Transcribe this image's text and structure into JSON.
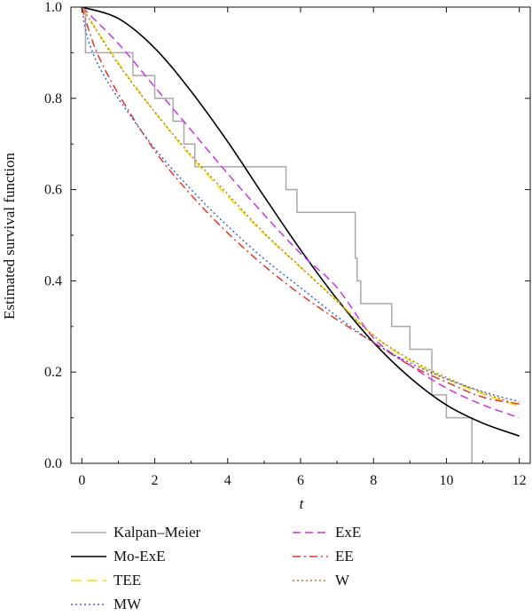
{
  "chart_data": {
    "type": "line",
    "title": "",
    "xlabel": "t",
    "ylabel": "Estimated survival function",
    "xlim": [
      -0.3,
      12.3
    ],
    "ylim": [
      0,
      1
    ],
    "xticks": [
      0,
      2,
      4,
      6,
      8,
      10,
      12
    ],
    "xtick_labels": [
      "0",
      "2",
      "4",
      "6",
      "8",
      "10",
      "12"
    ],
    "yticks": [
      0,
      0.2,
      0.4,
      0.6,
      0.8,
      1.0
    ],
    "ytick_labels": [
      "0.0",
      "0.2",
      "0.4",
      "0.6",
      "0.8",
      "1.0"
    ],
    "grid": false,
    "legend_placement": "bottom",
    "series": [
      {
        "name": "Kalpan–Meier",
        "color": "#a8a8a8",
        "dash": "solid",
        "step": true,
        "x": [
          0,
          0.1,
          1.4,
          1.4,
          2.0,
          2.5,
          2.8,
          3.1,
          5.0,
          5.6,
          5.9,
          7.5,
          7.55,
          7.65,
          8.5,
          9.0,
          9.6,
          10.0,
          10.7
        ],
        "y": [
          1.0,
          0.9,
          0.9,
          0.85,
          0.8,
          0.75,
          0.7,
          0.65,
          0.65,
          0.6,
          0.55,
          0.45,
          0.4,
          0.35,
          0.3,
          0.25,
          0.15,
          0.1,
          0.05
        ],
        "end": [
          10.7,
          0.0
        ]
      },
      {
        "name": "Mo-ExE",
        "color": "#000000",
        "dash": "solid",
        "x": [
          0,
          1,
          2,
          3,
          4,
          5,
          6,
          7,
          8,
          9,
          10,
          11,
          12
        ],
        "y": [
          1.0,
          0.975,
          0.91,
          0.815,
          0.705,
          0.585,
          0.468,
          0.36,
          0.265,
          0.188,
          0.128,
          0.088,
          0.06
        ]
      },
      {
        "name": "ExE",
        "color": "#cc33ee",
        "dash": "dashed",
        "x": [
          0,
          1,
          2,
          3,
          4,
          5,
          6,
          7,
          8,
          9,
          10,
          11,
          12
        ],
        "y": [
          1.0,
          0.92,
          0.825,
          0.73,
          0.635,
          0.545,
          0.46,
          0.385,
          0.275,
          0.215,
          0.165,
          0.128,
          0.1
        ]
      },
      {
        "name": "TEE",
        "color": "#f4e200",
        "dash": "longdash",
        "x": [
          0,
          1,
          2,
          3,
          4,
          5,
          6,
          7,
          8,
          9,
          10,
          11,
          12
        ],
        "y": [
          1.0,
          0.878,
          0.77,
          0.672,
          0.585,
          0.503,
          0.43,
          0.357,
          0.28,
          0.225,
          0.185,
          0.152,
          0.125
        ]
      },
      {
        "name": "EE",
        "color": "#ee3322",
        "dash": "dashdot",
        "x": [
          0,
          0.25,
          0.5,
          1,
          2,
          3,
          4,
          5,
          6,
          7,
          8,
          9,
          10,
          11,
          12
        ],
        "y": [
          1.0,
          0.935,
          0.885,
          0.81,
          0.685,
          0.588,
          0.505,
          0.433,
          0.37,
          0.315,
          0.265,
          0.215,
          0.178,
          0.145,
          0.13
        ]
      },
      {
        "name": "MW",
        "color": "#3366dd",
        "dash": "dotted",
        "x": [
          0,
          0.1,
          0.25,
          0.5,
          1,
          2,
          3,
          4,
          5,
          6,
          7,
          8,
          9,
          10,
          11,
          12
        ],
        "y": [
          1.0,
          0.95,
          0.91,
          0.865,
          0.8,
          0.69,
          0.6,
          0.52,
          0.448,
          0.385,
          0.322,
          0.265,
          0.22,
          0.185,
          0.157,
          0.135
        ]
      },
      {
        "name": "W",
        "color": "#bb7733",
        "dash": "dotted",
        "x": [
          0,
          1,
          2,
          3,
          4,
          5,
          6,
          7,
          8,
          9,
          10,
          11,
          12
        ],
        "y": [
          1.0,
          0.875,
          0.77,
          0.675,
          0.59,
          0.505,
          0.43,
          0.355,
          0.28,
          0.228,
          0.188,
          0.155,
          0.128
        ]
      }
    ],
    "legend": [
      {
        "label": "Kalpan–Meier",
        "series": 0
      },
      {
        "label": "Mo-ExE",
        "series": 1
      },
      {
        "label": "TEE",
        "series": 3
      },
      {
        "label": "MW",
        "series": 5
      },
      {
        "label": "ExE",
        "series": 2
      },
      {
        "label": "EE",
        "series": 4
      },
      {
        "label": "W",
        "series": 6
      }
    ]
  }
}
